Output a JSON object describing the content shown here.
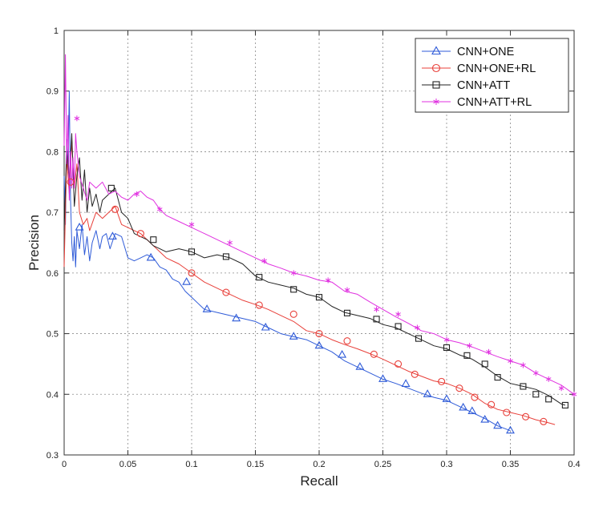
{
  "chart_data": {
    "type": "line",
    "title": "",
    "xlabel": "Recall",
    "ylabel": "Precision",
    "xlim": [
      0,
      0.4
    ],
    "ylim": [
      0.3,
      1.0
    ],
    "grid": true,
    "legend_position": "top-right",
    "x_ticks": [
      "0",
      "0.05",
      "0.1",
      "0.15",
      "0.2",
      "0.25",
      "0.3",
      "0.35",
      "0.4"
    ],
    "y_ticks": [
      "0.3",
      "0.4",
      "0.5",
      "0.6",
      "0.7",
      "0.8",
      "0.9",
      "1"
    ],
    "series": [
      {
        "name": "CNN+ONE",
        "color": "#2f5bd8",
        "marker": "triangle",
        "points": [
          [
            0.0,
            0.76
          ],
          [
            0.001,
            0.68
          ],
          [
            0.002,
            0.82
          ],
          [
            0.003,
            0.77
          ],
          [
            0.004,
            0.9
          ],
          [
            0.005,
            0.72
          ],
          [
            0.006,
            0.65
          ],
          [
            0.007,
            0.62
          ],
          [
            0.008,
            0.66
          ],
          [
            0.009,
            0.61
          ],
          [
            0.01,
            0.67
          ],
          [
            0.012,
            0.64
          ],
          [
            0.014,
            0.68
          ],
          [
            0.016,
            0.63
          ],
          [
            0.018,
            0.66
          ],
          [
            0.02,
            0.62
          ],
          [
            0.022,
            0.65
          ],
          [
            0.025,
            0.67
          ],
          [
            0.028,
            0.64
          ],
          [
            0.03,
            0.66
          ],
          [
            0.033,
            0.665
          ],
          [
            0.036,
            0.64
          ],
          [
            0.04,
            0.665
          ],
          [
            0.045,
            0.66
          ],
          [
            0.05,
            0.625
          ],
          [
            0.055,
            0.62
          ],
          [
            0.06,
            0.625
          ],
          [
            0.065,
            0.63
          ],
          [
            0.07,
            0.625
          ],
          [
            0.075,
            0.61
          ],
          [
            0.08,
            0.605
          ],
          [
            0.085,
            0.59
          ],
          [
            0.09,
            0.585
          ],
          [
            0.095,
            0.57
          ],
          [
            0.1,
            0.56
          ],
          [
            0.105,
            0.55
          ],
          [
            0.11,
            0.54
          ],
          [
            0.12,
            0.535
          ],
          [
            0.13,
            0.53
          ],
          [
            0.14,
            0.525
          ],
          [
            0.15,
            0.52
          ],
          [
            0.16,
            0.51
          ],
          [
            0.17,
            0.5
          ],
          [
            0.18,
            0.495
          ],
          [
            0.19,
            0.49
          ],
          [
            0.2,
            0.48
          ],
          [
            0.21,
            0.47
          ],
          [
            0.22,
            0.455
          ],
          [
            0.23,
            0.445
          ],
          [
            0.24,
            0.435
          ],
          [
            0.25,
            0.425
          ],
          [
            0.26,
            0.418
          ],
          [
            0.27,
            0.41
          ],
          [
            0.28,
            0.402
          ],
          [
            0.29,
            0.395
          ],
          [
            0.3,
            0.39
          ],
          [
            0.31,
            0.38
          ],
          [
            0.32,
            0.37
          ],
          [
            0.33,
            0.36
          ],
          [
            0.34,
            0.348
          ],
          [
            0.35,
            0.34
          ]
        ],
        "markers": [
          [
            0.012,
            0.675
          ],
          [
            0.038,
            0.66
          ],
          [
            0.068,
            0.625
          ],
          [
            0.096,
            0.585
          ],
          [
            0.112,
            0.54
          ],
          [
            0.135,
            0.525
          ],
          [
            0.158,
            0.51
          ],
          [
            0.18,
            0.495
          ],
          [
            0.2,
            0.48
          ],
          [
            0.218,
            0.465
          ],
          [
            0.232,
            0.445
          ],
          [
            0.25,
            0.425
          ],
          [
            0.268,
            0.417
          ],
          [
            0.285,
            0.4
          ],
          [
            0.3,
            0.392
          ],
          [
            0.313,
            0.378
          ],
          [
            0.32,
            0.372
          ],
          [
            0.33,
            0.358
          ],
          [
            0.34,
            0.348
          ],
          [
            0.35,
            0.34
          ]
        ]
      },
      {
        "name": "CNN+ONE+RL",
        "color": "#e8403a",
        "marker": "circle",
        "points": [
          [
            0.0,
            0.61
          ],
          [
            0.002,
            0.79
          ],
          [
            0.004,
            0.73
          ],
          [
            0.006,
            0.82
          ],
          [
            0.008,
            0.74
          ],
          [
            0.01,
            0.78
          ],
          [
            0.012,
            0.7
          ],
          [
            0.015,
            0.68
          ],
          [
            0.018,
            0.69
          ],
          [
            0.02,
            0.67
          ],
          [
            0.025,
            0.7
          ],
          [
            0.03,
            0.69
          ],
          [
            0.035,
            0.7
          ],
          [
            0.04,
            0.71
          ],
          [
            0.045,
            0.68
          ],
          [
            0.05,
            0.675
          ],
          [
            0.055,
            0.67
          ],
          [
            0.06,
            0.665
          ],
          [
            0.065,
            0.655
          ],
          [
            0.07,
            0.645
          ],
          [
            0.075,
            0.635
          ],
          [
            0.08,
            0.625
          ],
          [
            0.09,
            0.615
          ],
          [
            0.1,
            0.6
          ],
          [
            0.11,
            0.585
          ],
          [
            0.12,
            0.575
          ],
          [
            0.13,
            0.565
          ],
          [
            0.14,
            0.555
          ],
          [
            0.15,
            0.548
          ],
          [
            0.16,
            0.54
          ],
          [
            0.17,
            0.53
          ],
          [
            0.18,
            0.52
          ],
          [
            0.19,
            0.505
          ],
          [
            0.2,
            0.5
          ],
          [
            0.21,
            0.49
          ],
          [
            0.22,
            0.482
          ],
          [
            0.23,
            0.475
          ],
          [
            0.24,
            0.467
          ],
          [
            0.25,
            0.458
          ],
          [
            0.26,
            0.448
          ],
          [
            0.27,
            0.438
          ],
          [
            0.28,
            0.43
          ],
          [
            0.29,
            0.422
          ],
          [
            0.3,
            0.418
          ],
          [
            0.31,
            0.41
          ],
          [
            0.32,
            0.4
          ],
          [
            0.33,
            0.385
          ],
          [
            0.34,
            0.375
          ],
          [
            0.35,
            0.37
          ],
          [
            0.36,
            0.365
          ],
          [
            0.37,
            0.358
          ],
          [
            0.38,
            0.353
          ],
          [
            0.385,
            0.35
          ]
        ],
        "markers": [
          [
            0.005,
            0.75
          ],
          [
            0.04,
            0.705
          ],
          [
            0.06,
            0.665
          ],
          [
            0.1,
            0.6
          ],
          [
            0.127,
            0.568
          ],
          [
            0.153,
            0.547
          ],
          [
            0.18,
            0.532
          ],
          [
            0.2,
            0.5
          ],
          [
            0.222,
            0.488
          ],
          [
            0.243,
            0.466
          ],
          [
            0.262,
            0.45
          ],
          [
            0.275,
            0.433
          ],
          [
            0.296,
            0.421
          ],
          [
            0.31,
            0.41
          ],
          [
            0.322,
            0.395
          ],
          [
            0.335,
            0.383
          ],
          [
            0.347,
            0.37
          ],
          [
            0.362,
            0.363
          ],
          [
            0.376,
            0.355
          ]
        ]
      },
      {
        "name": "CNN+ATT",
        "color": "#222222",
        "marker": "square",
        "points": [
          [
            0.0,
            0.67
          ],
          [
            0.002,
            0.81
          ],
          [
            0.004,
            0.75
          ],
          [
            0.006,
            0.83
          ],
          [
            0.008,
            0.71
          ],
          [
            0.01,
            0.76
          ],
          [
            0.012,
            0.79
          ],
          [
            0.014,
            0.72
          ],
          [
            0.016,
            0.77
          ],
          [
            0.018,
            0.7
          ],
          [
            0.02,
            0.74
          ],
          [
            0.022,
            0.71
          ],
          [
            0.025,
            0.73
          ],
          [
            0.028,
            0.7
          ],
          [
            0.03,
            0.72
          ],
          [
            0.035,
            0.73
          ],
          [
            0.04,
            0.74
          ],
          [
            0.045,
            0.7
          ],
          [
            0.05,
            0.69
          ],
          [
            0.055,
            0.665
          ],
          [
            0.06,
            0.66
          ],
          [
            0.065,
            0.655
          ],
          [
            0.07,
            0.645
          ],
          [
            0.075,
            0.64
          ],
          [
            0.08,
            0.635
          ],
          [
            0.09,
            0.64
          ],
          [
            0.1,
            0.635
          ],
          [
            0.11,
            0.625
          ],
          [
            0.12,
            0.63
          ],
          [
            0.13,
            0.625
          ],
          [
            0.14,
            0.615
          ],
          [
            0.15,
            0.595
          ],
          [
            0.16,
            0.585
          ],
          [
            0.17,
            0.58
          ],
          [
            0.18,
            0.575
          ],
          [
            0.19,
            0.565
          ],
          [
            0.2,
            0.56
          ],
          [
            0.21,
            0.545
          ],
          [
            0.22,
            0.535
          ],
          [
            0.23,
            0.53
          ],
          [
            0.24,
            0.525
          ],
          [
            0.25,
            0.515
          ],
          [
            0.26,
            0.51
          ],
          [
            0.27,
            0.5
          ],
          [
            0.28,
            0.49
          ],
          [
            0.29,
            0.48
          ],
          [
            0.3,
            0.475
          ],
          [
            0.31,
            0.465
          ],
          [
            0.32,
            0.458
          ],
          [
            0.33,
            0.445
          ],
          [
            0.34,
            0.43
          ],
          [
            0.35,
            0.418
          ],
          [
            0.36,
            0.413
          ],
          [
            0.37,
            0.408
          ],
          [
            0.38,
            0.398
          ],
          [
            0.39,
            0.384
          ],
          [
            0.393,
            0.382
          ]
        ],
        "markers": [
          [
            0.037,
            0.74
          ],
          [
            0.07,
            0.655
          ],
          [
            0.1,
            0.635
          ],
          [
            0.127,
            0.627
          ],
          [
            0.153,
            0.593
          ],
          [
            0.18,
            0.573
          ],
          [
            0.2,
            0.56
          ],
          [
            0.222,
            0.534
          ],
          [
            0.245,
            0.524
          ],
          [
            0.262,
            0.512
          ],
          [
            0.278,
            0.492
          ],
          [
            0.3,
            0.477
          ],
          [
            0.316,
            0.464
          ],
          [
            0.33,
            0.45
          ],
          [
            0.34,
            0.428
          ],
          [
            0.36,
            0.413
          ],
          [
            0.37,
            0.4
          ],
          [
            0.38,
            0.392
          ],
          [
            0.393,
            0.382
          ]
        ]
      },
      {
        "name": "CNN+ATT+RL",
        "color": "#e030e0",
        "marker": "asterisk",
        "points": [
          [
            0.0,
            0.81
          ],
          [
            0.001,
            0.96
          ],
          [
            0.002,
            0.78
          ],
          [
            0.003,
            0.86
          ],
          [
            0.004,
            0.72
          ],
          [
            0.005,
            0.8
          ],
          [
            0.006,
            0.74
          ],
          [
            0.007,
            0.79
          ],
          [
            0.008,
            0.74
          ],
          [
            0.009,
            0.83
          ],
          [
            0.01,
            0.8
          ],
          [
            0.012,
            0.76
          ],
          [
            0.015,
            0.74
          ],
          [
            0.018,
            0.72
          ],
          [
            0.02,
            0.75
          ],
          [
            0.025,
            0.74
          ],
          [
            0.03,
            0.75
          ],
          [
            0.035,
            0.73
          ],
          [
            0.04,
            0.735
          ],
          [
            0.045,
            0.725
          ],
          [
            0.05,
            0.72
          ],
          [
            0.055,
            0.73
          ],
          [
            0.06,
            0.735
          ],
          [
            0.065,
            0.725
          ],
          [
            0.07,
            0.72
          ],
          [
            0.075,
            0.705
          ],
          [
            0.08,
            0.695
          ],
          [
            0.09,
            0.685
          ],
          [
            0.1,
            0.675
          ],
          [
            0.11,
            0.665
          ],
          [
            0.12,
            0.655
          ],
          [
            0.13,
            0.645
          ],
          [
            0.14,
            0.635
          ],
          [
            0.15,
            0.625
          ],
          [
            0.16,
            0.615
          ],
          [
            0.17,
            0.608
          ],
          [
            0.18,
            0.6
          ],
          [
            0.19,
            0.595
          ],
          [
            0.2,
            0.588
          ],
          [
            0.21,
            0.585
          ],
          [
            0.22,
            0.57
          ],
          [
            0.23,
            0.565
          ],
          [
            0.24,
            0.552
          ],
          [
            0.25,
            0.54
          ],
          [
            0.26,
            0.528
          ],
          [
            0.27,
            0.517
          ],
          [
            0.28,
            0.505
          ],
          [
            0.29,
            0.5
          ],
          [
            0.3,
            0.49
          ],
          [
            0.31,
            0.485
          ],
          [
            0.32,
            0.478
          ],
          [
            0.33,
            0.47
          ],
          [
            0.34,
            0.462
          ],
          [
            0.35,
            0.455
          ],
          [
            0.36,
            0.448
          ],
          [
            0.37,
            0.435
          ],
          [
            0.38,
            0.425
          ],
          [
            0.39,
            0.415
          ],
          [
            0.4,
            0.4
          ]
        ],
        "markers": [
          [
            0.01,
            0.855
          ],
          [
            0.057,
            0.73
          ],
          [
            0.075,
            0.705
          ],
          [
            0.1,
            0.68
          ],
          [
            0.13,
            0.65
          ],
          [
            0.157,
            0.62
          ],
          [
            0.18,
            0.6
          ],
          [
            0.207,
            0.588
          ],
          [
            0.222,
            0.572
          ],
          [
            0.245,
            0.54
          ],
          [
            0.262,
            0.532
          ],
          [
            0.277,
            0.51
          ],
          [
            0.3,
            0.49
          ],
          [
            0.318,
            0.48
          ],
          [
            0.333,
            0.47
          ],
          [
            0.35,
            0.455
          ],
          [
            0.36,
            0.448
          ],
          [
            0.37,
            0.435
          ],
          [
            0.38,
            0.425
          ],
          [
            0.39,
            0.41
          ],
          [
            0.4,
            0.4
          ]
        ]
      }
    ]
  }
}
